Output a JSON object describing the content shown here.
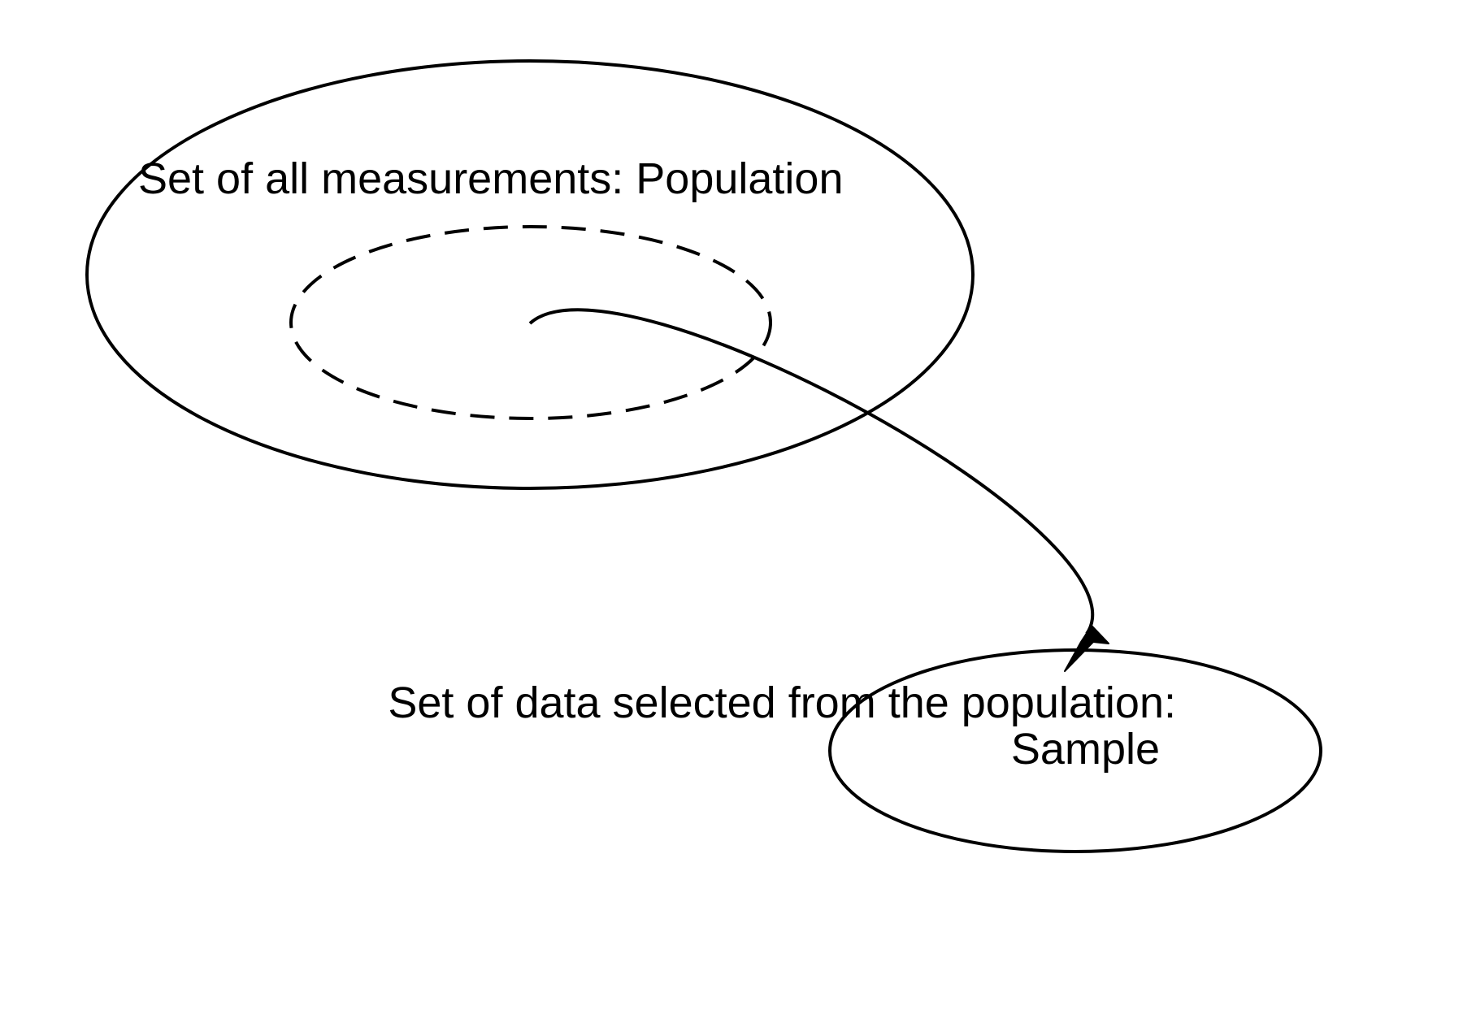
{
  "diagram": {
    "population": {
      "label": "Set of all measurements: Population"
    },
    "sample": {
      "label_line1": "Set of data selected from the population:",
      "label_line2": "Sample"
    },
    "colors": {
      "stroke": "#000000",
      "background": "#ffffff"
    }
  }
}
